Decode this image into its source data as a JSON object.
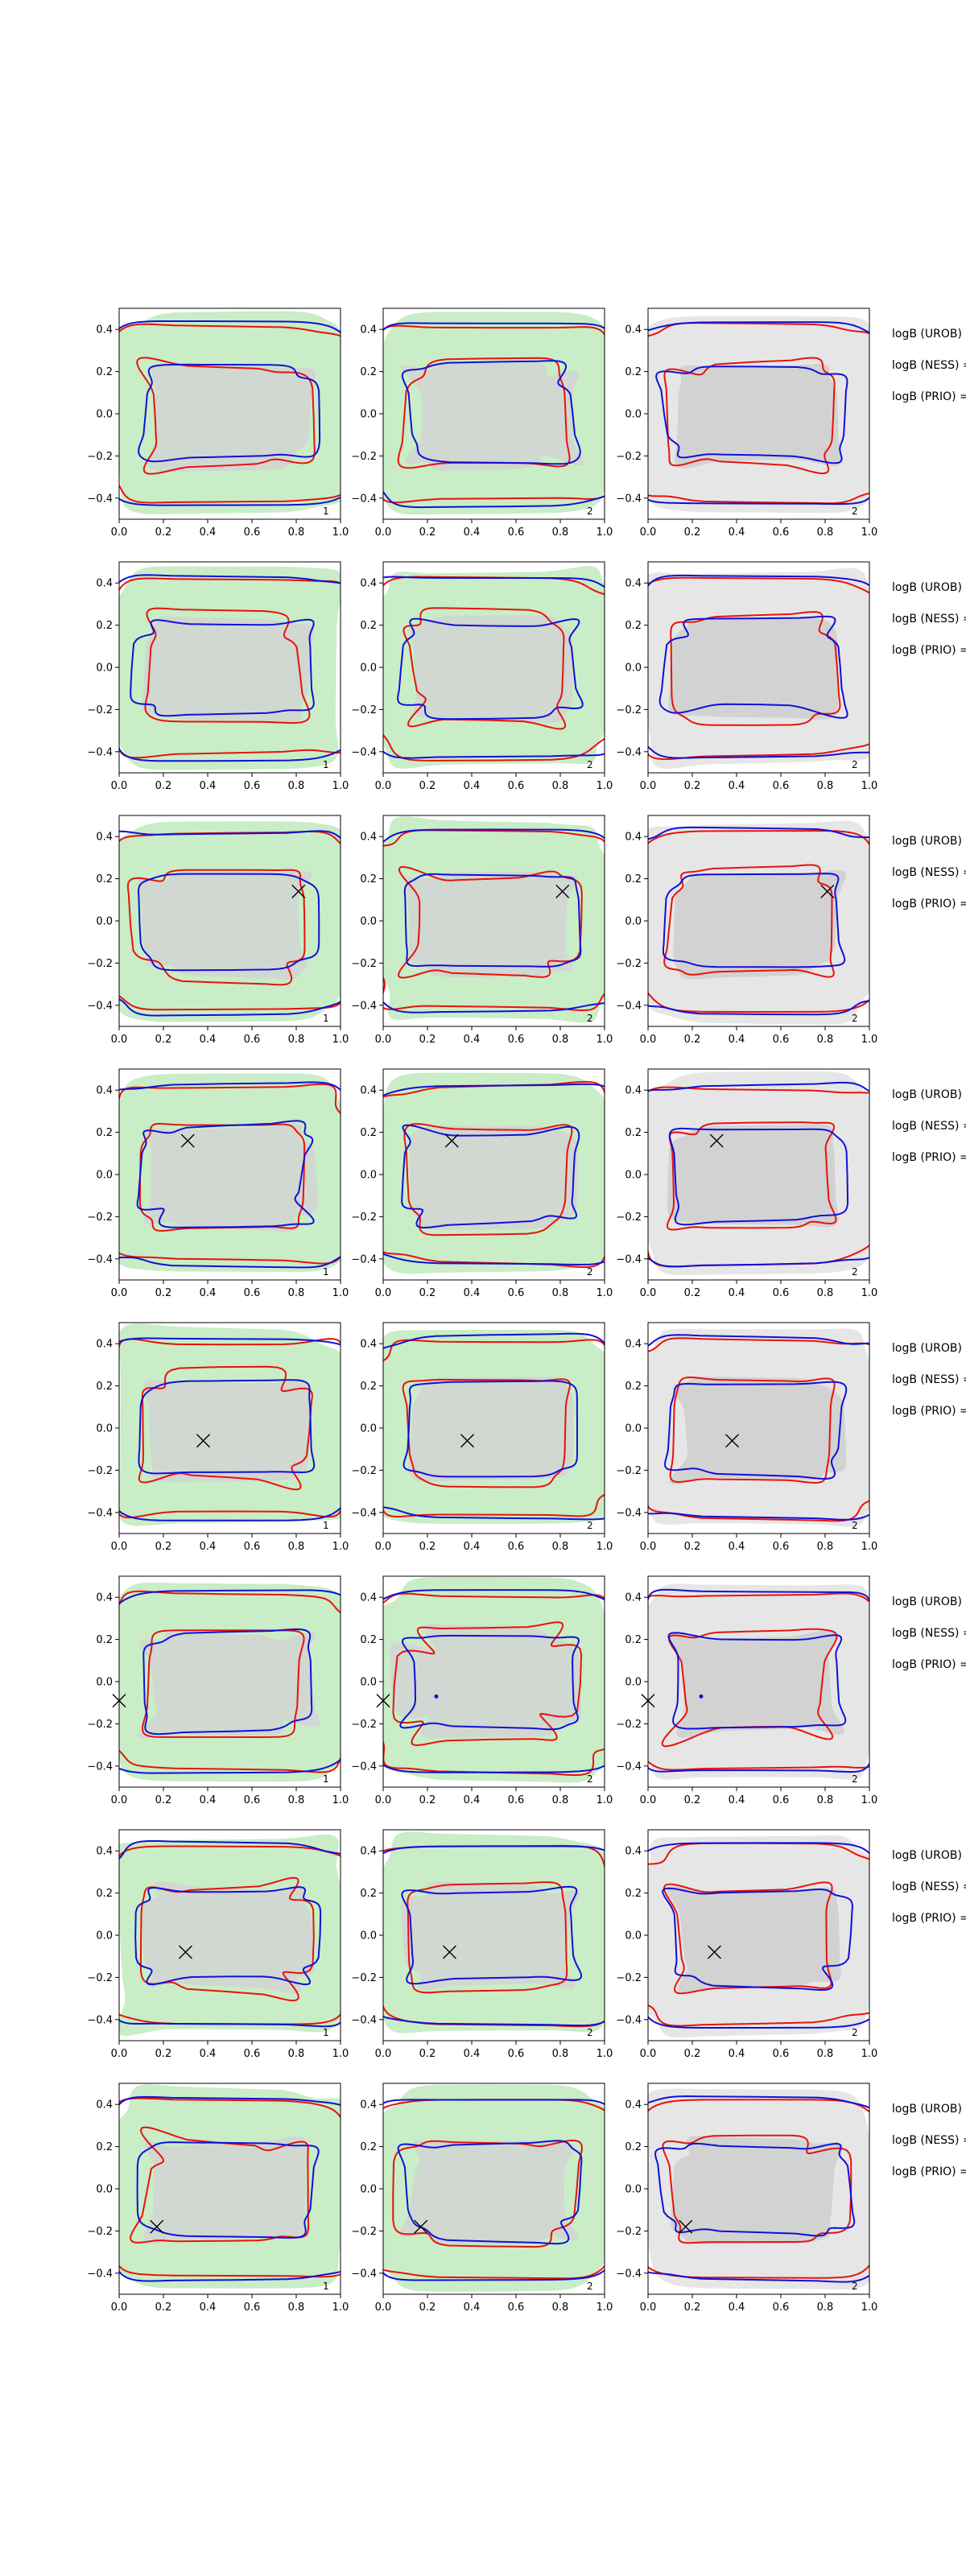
{
  "chart_data": {
    "type": "contour_grid",
    "rows": 8,
    "cols": 3,
    "xlim": [
      0,
      1
    ],
    "ylim": [
      -0.5,
      0.5
    ],
    "xticks": [
      "0.0",
      "0.2",
      "0.4",
      "0.6",
      "0.8",
      "1.0"
    ],
    "yticks": [
      "0.4",
      "0.2",
      "0.0",
      "−0.2",
      "−0.4"
    ],
    "xtick_values": [
      0,
      0.2,
      0.4,
      0.6,
      0.8,
      1.0
    ],
    "ytick_values": [
      0.4,
      0.2,
      0,
      -0.2,
      -0.4
    ],
    "panel_numbers": [
      "1",
      "2",
      "2"
    ],
    "panel_background": [
      "green",
      "green",
      "gray"
    ],
    "row_labels": [
      "logB (UROB) =",
      "logB (NESS) =",
      "logB (PRIO) ="
    ],
    "markers": [
      null,
      null,
      {
        "x": 0.81,
        "y": 0.14,
        "symbol": "x"
      },
      {
        "x": 0.31,
        "y": 0.16,
        "symbol": "x"
      },
      {
        "x": 0.38,
        "y": -0.06,
        "symbol": "x"
      },
      {
        "x": 0.0,
        "y": -0.09,
        "symbol": "x",
        "dot": {
          "x": 0.24,
          "y": -0.07
        }
      },
      {
        "x": 0.3,
        "y": -0.08,
        "symbol": "x"
      },
      {
        "x": 0.17,
        "y": -0.18,
        "symbol": "x"
      }
    ],
    "colors": {
      "outer_bg_green": "#c9edc6",
      "inner_bg_gray": "#d2d2d2",
      "outer_bg_gray": "#e6e6e6",
      "contour_red": "#e8120c",
      "contour_blue": "#1010d8",
      "axes": "#000000"
    }
  }
}
